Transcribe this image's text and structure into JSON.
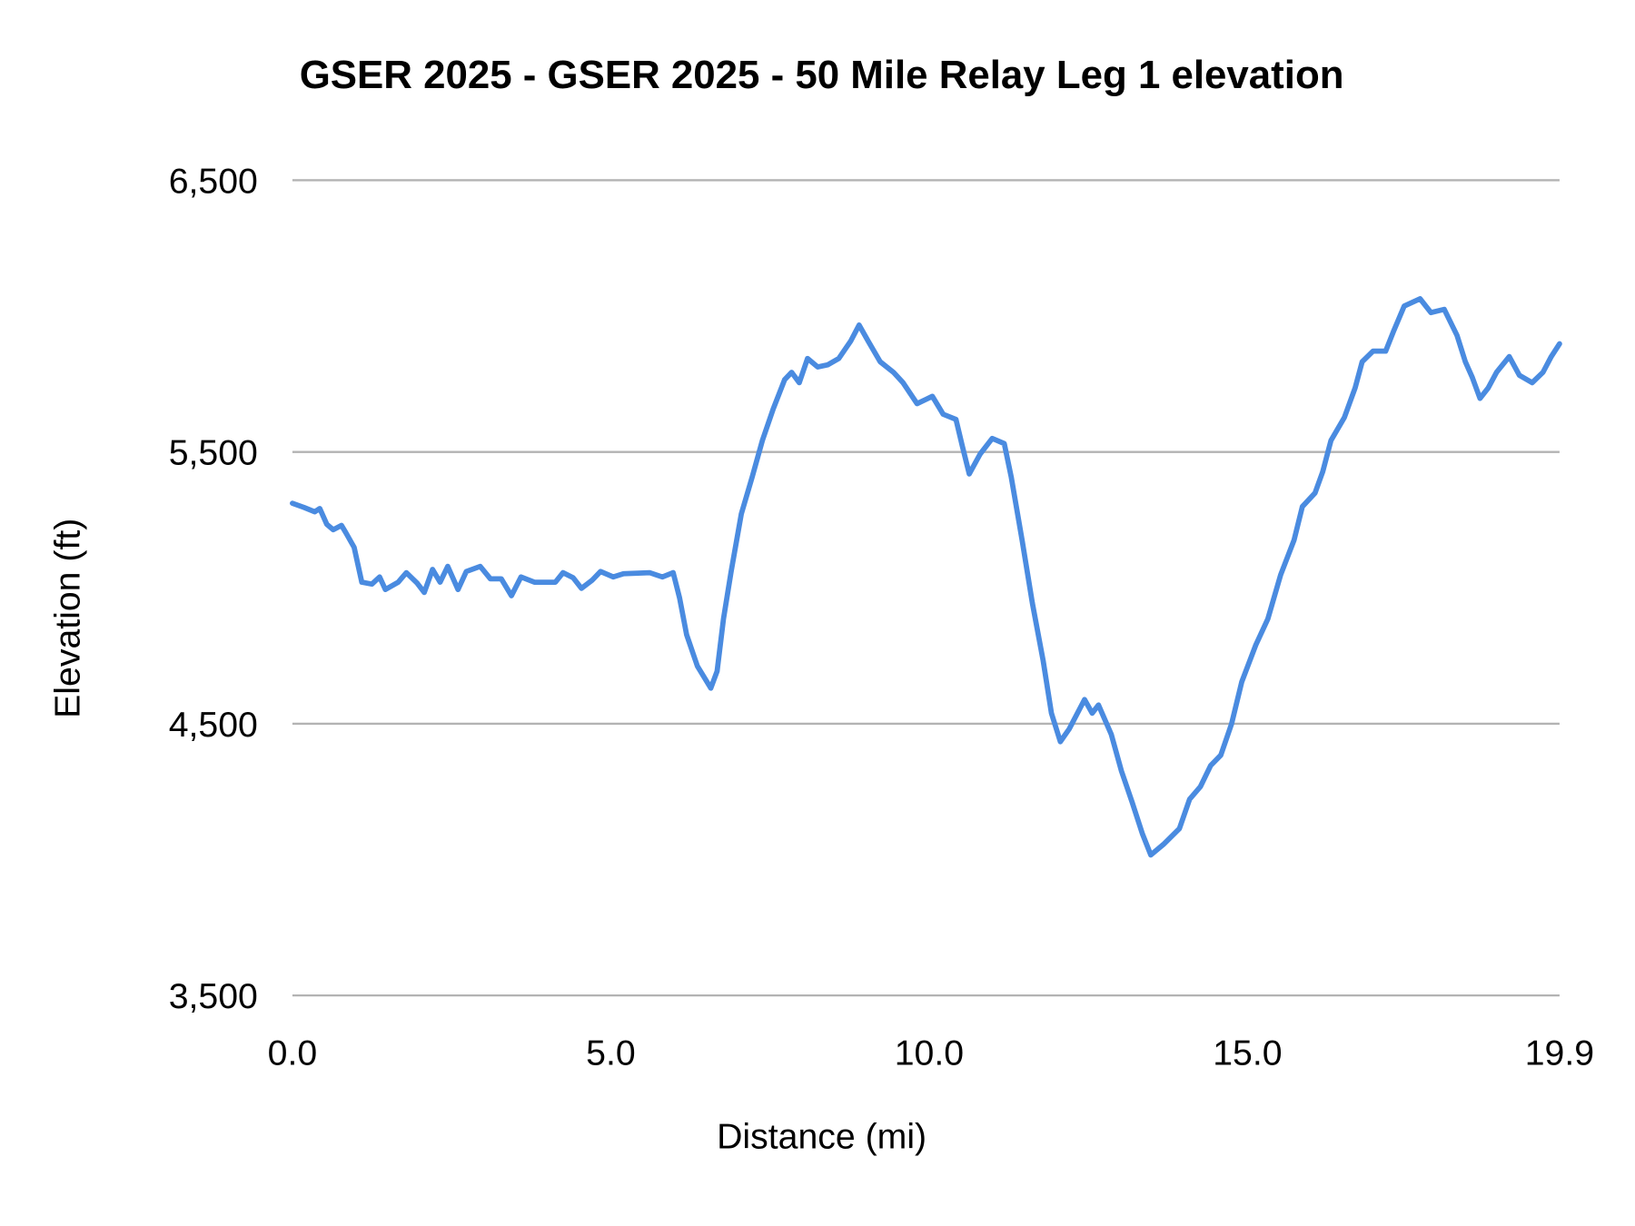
{
  "chart_data": {
    "type": "line",
    "title": "GSER 2025 - GSER 2025 - 50 Mile Relay Leg 1 elevation",
    "xlabel": "Distance (mi)",
    "ylabel": "Elevation (ft)",
    "xlim": [
      0,
      19.9
    ],
    "ylim": [
      3500,
      6500
    ],
    "xticks": [
      "0.0",
      "5.0",
      "10.0",
      "15.0",
      "19.9"
    ],
    "xtick_values": [
      0,
      5,
      10,
      15,
      19.9
    ],
    "yticks": [
      "6,500",
      "5,500",
      "4,500",
      "3,500"
    ],
    "ytick_values": [
      6500,
      5500,
      4500,
      3500
    ],
    "grid": "horizontal",
    "legend": "none",
    "line_color": "#4a8be0",
    "x": [
      0,
      0.18,
      0.35,
      0.43,
      0.54,
      0.64,
      0.77,
      0.84,
      0.97,
      1.09,
      1.25,
      1.37,
      1.46,
      1.66,
      1.79,
      1.96,
      2.07,
      2.2,
      2.32,
      2.44,
      2.6,
      2.73,
      2.95,
      3.11,
      3.28,
      3.44,
      3.59,
      3.8,
      4.13,
      4.25,
      4.41,
      4.54,
      4.71,
      4.84,
      5.04,
      5.2,
      5.61,
      5.81,
      5.98,
      6.08,
      6.19,
      6.36,
      6.57,
      6.67,
      6.77,
      6.89,
      7.05,
      7.22,
      7.38,
      7.55,
      7.73,
      7.84,
      7.96,
      8.09,
      8.25,
      8.41,
      8.58,
      8.77,
      8.9,
      9.04,
      9.23,
      9.44,
      9.59,
      9.81,
      10.05,
      10.22,
      10.42,
      10.52,
      10.63,
      10.8,
      10.99,
      11.18,
      11.29,
      11.46,
      11.62,
      11.79,
      11.92,
      12.06,
      12.2,
      12.44,
      12.56,
      12.66,
      12.86,
      13.02,
      13.19,
      13.35,
      13.48,
      13.68,
      13.93,
      14.09,
      14.26,
      14.42,
      14.58,
      14.75,
      14.91,
      15.13,
      15.32,
      15.52,
      15.73,
      15.86,
      16.06,
      16.18,
      16.31,
      16.52,
      16.69,
      16.8,
      16.97,
      17.17,
      17.3,
      17.46,
      17.71,
      17.88,
      18.09,
      18.29,
      18.42,
      18.53,
      18.65,
      18.78,
      18.91,
      19.11,
      19.27,
      19.47,
      19.64,
      19.77,
      19.9
    ],
    "y": [
      5311,
      5296,
      5280,
      5292,
      5234,
      5214,
      5230,
      5203,
      5149,
      5021,
      5014,
      5040,
      4994,
      5021,
      5056,
      5017,
      4983,
      5068,
      5021,
      5079,
      4994,
      5060,
      5079,
      5033,
      5033,
      4971,
      5040,
      5021,
      5021,
      5056,
      5037,
      4998,
      5029,
      5060,
      5040,
      5052,
      5056,
      5040,
      5056,
      4963,
      4828,
      4712,
      4631,
      4693,
      4886,
      5060,
      5272,
      5407,
      5542,
      5658,
      5766,
      5793,
      5755,
      5844,
      5813,
      5821,
      5844,
      5909,
      5967,
      5909,
      5832,
      5793,
      5755,
      5678,
      5705,
      5639,
      5620,
      5523,
      5419,
      5492,
      5550,
      5531,
      5407,
      5176,
      4944,
      4732,
      4539,
      4434,
      4481,
      4589,
      4539,
      4569,
      4461,
      4326,
      4210,
      4094,
      4017,
      4056,
      4114,
      4222,
      4268,
      4346,
      4384,
      4500,
      4654,
      4790,
      4886,
      5048,
      5176,
      5299,
      5349,
      5427,
      5542,
      5627,
      5736,
      5832,
      5871,
      5871,
      5948,
      6037,
      6064,
      6013,
      6025,
      5929,
      5832,
      5774,
      5697,
      5736,
      5793,
      5851,
      5782,
      5755,
      5793,
      5851,
      5898
    ]
  }
}
